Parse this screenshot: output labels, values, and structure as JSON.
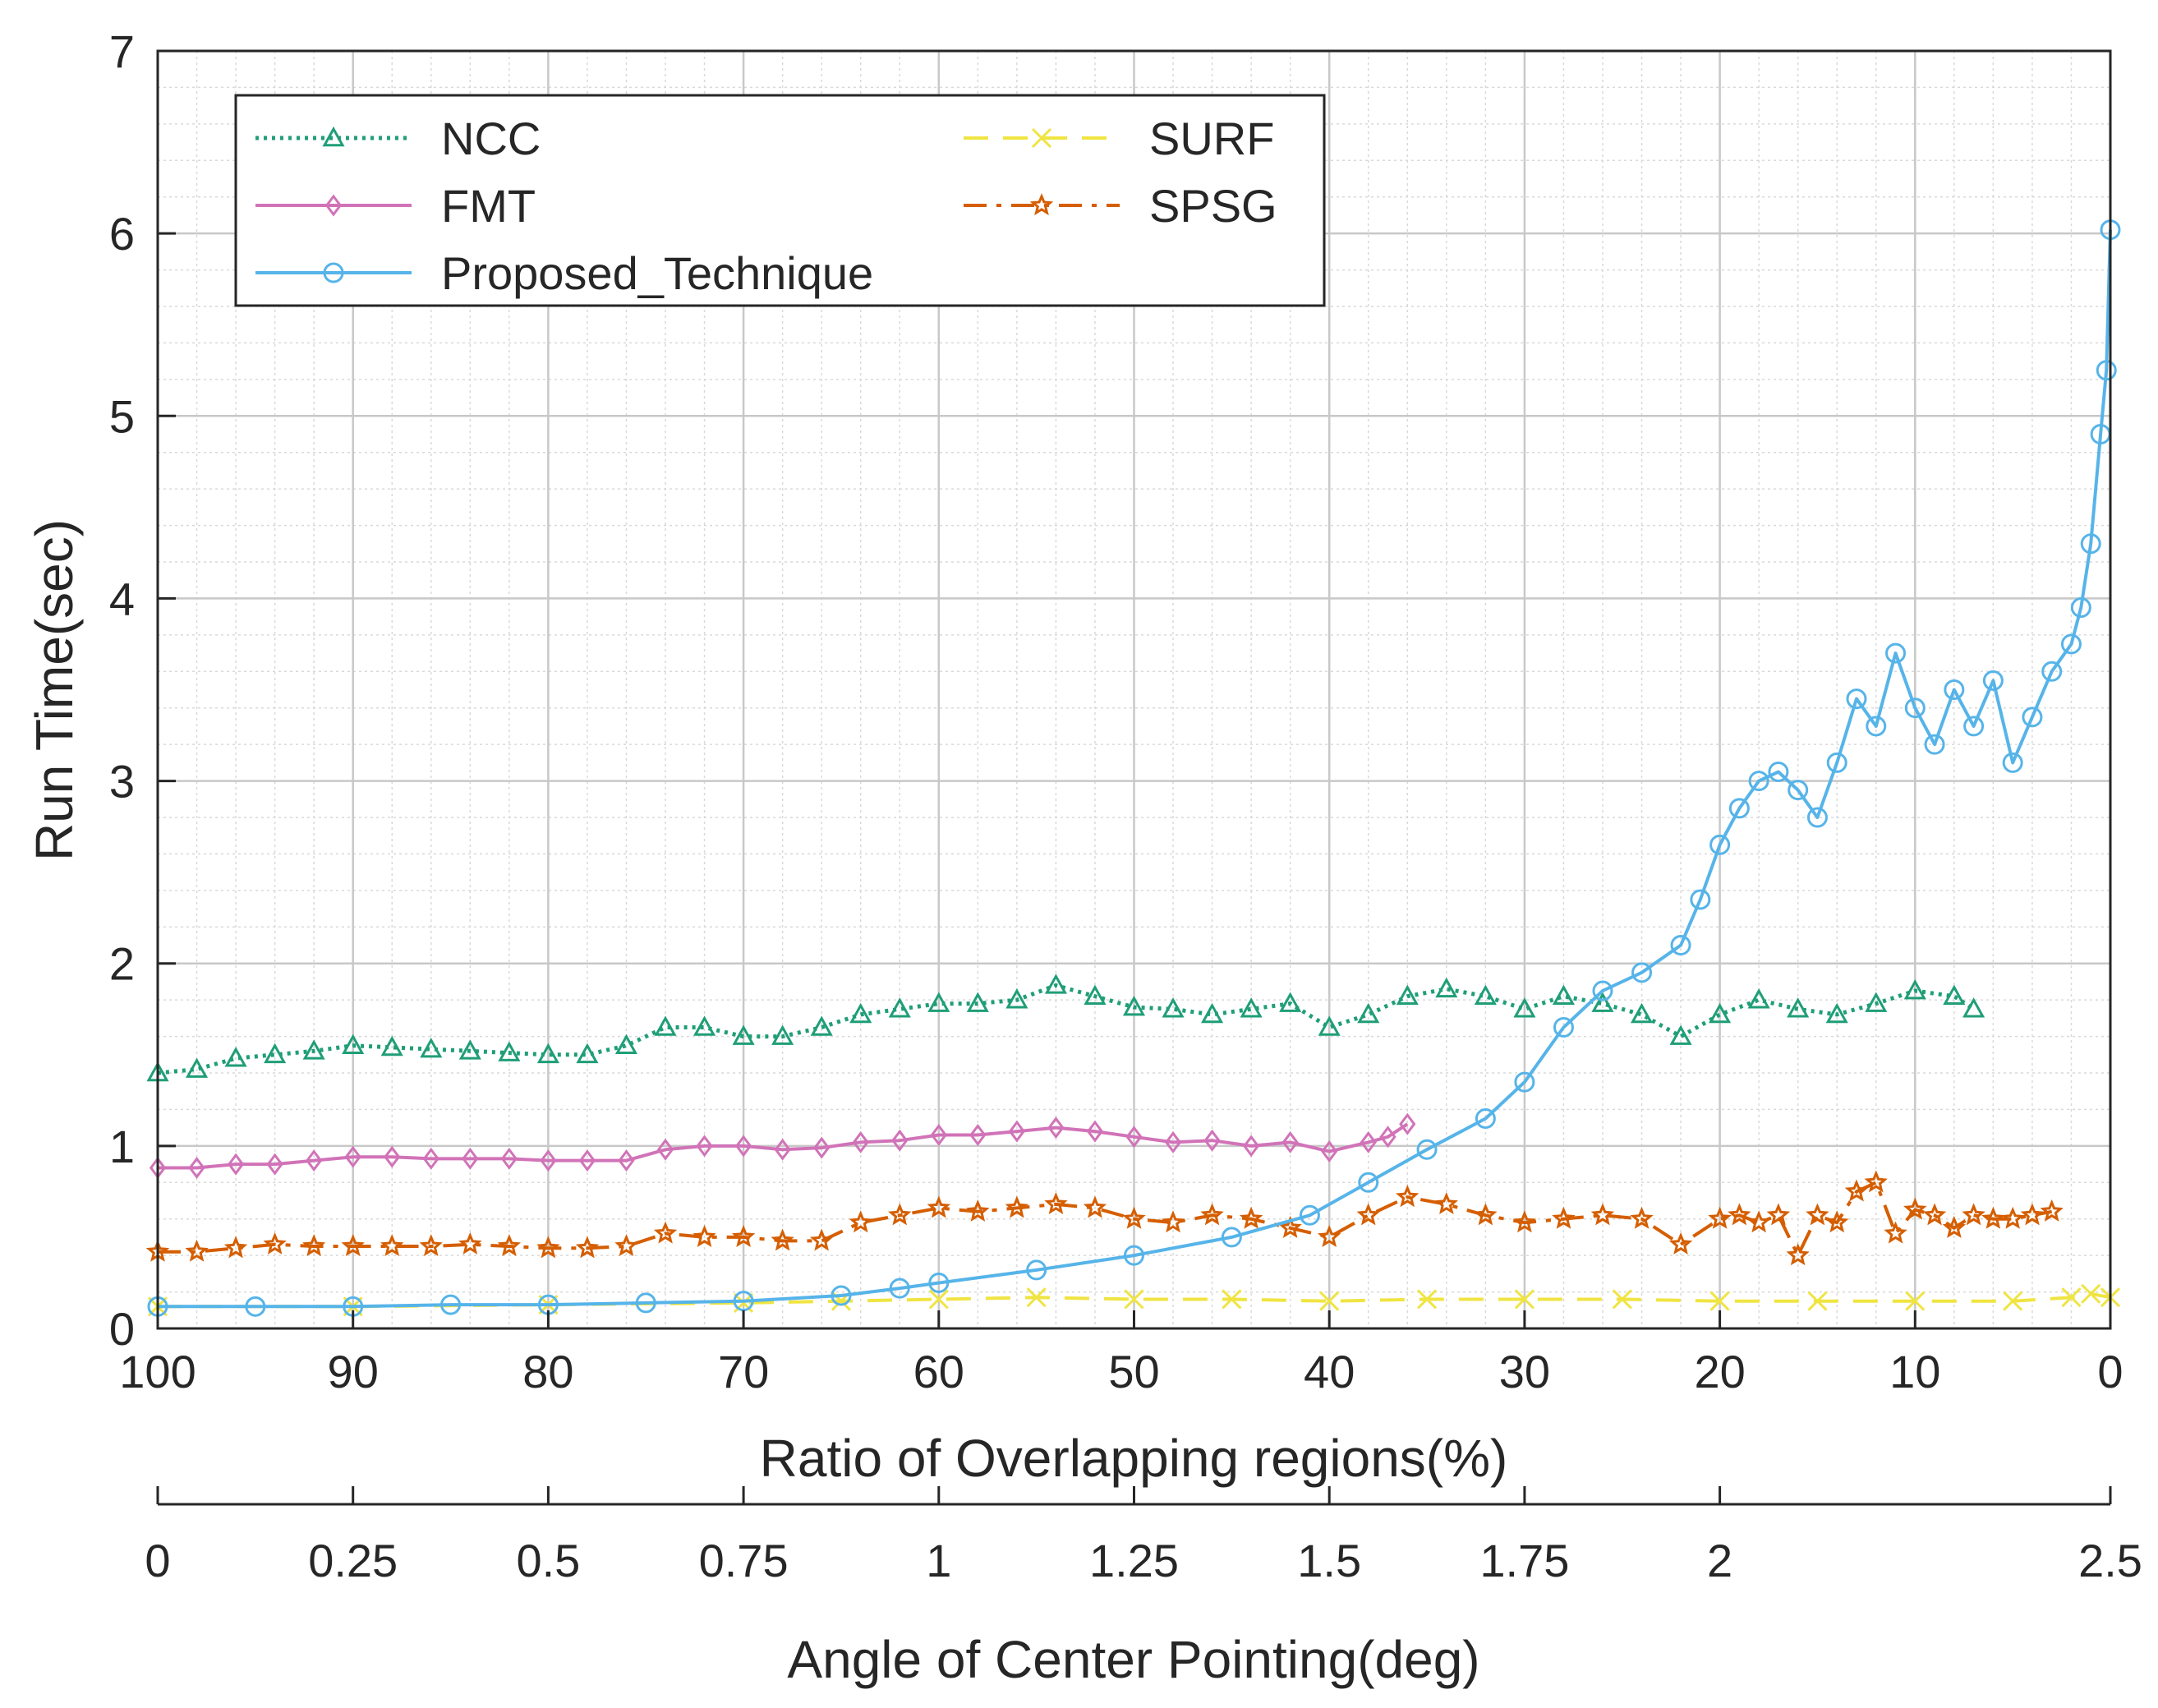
{
  "chart_data": {
    "type": "line",
    "title": "",
    "xlabel": "Ratio of Overlapping regions(%)",
    "ylabel": "Run Time(sec)",
    "x2label": "Angle of Center Pointing(deg)",
    "xlim": [
      100,
      0
    ],
    "ylim": [
      0,
      7
    ],
    "x2lim": [
      0,
      2.5
    ],
    "xticks": [
      "100",
      "90",
      "80",
      "70",
      "60",
      "50",
      "40",
      "30",
      "20",
      "10",
      "0"
    ],
    "yticks": [
      "0",
      "1",
      "2",
      "3",
      "4",
      "5",
      "6",
      "7"
    ],
    "x2ticks": [
      "0",
      "0.25",
      "0.5",
      "0.75",
      "1",
      "1.25",
      "1.5",
      "1.75",
      "2",
      "2.5"
    ],
    "x2tick_values": [
      0,
      0.25,
      0.5,
      0.75,
      1,
      1.25,
      1.5,
      1.75,
      2,
      2.5
    ],
    "grid": true,
    "minor_grid": true,
    "legend_position": "top-left",
    "series": [
      {
        "name": "NCC",
        "color": "#1f9e77",
        "marker": "triangle",
        "line": "dotted",
        "x": [
          100,
          98,
          96,
          94,
          92,
          90,
          88,
          86,
          84,
          82,
          80,
          78,
          76,
          74,
          72,
          70,
          68,
          66,
          64,
          62,
          60,
          58,
          56,
          54,
          52,
          50,
          48,
          46,
          44,
          42,
          40,
          38,
          36,
          34,
          32,
          30,
          28,
          26,
          24,
          22,
          20,
          18,
          16,
          14,
          12,
          10,
          8,
          7
        ],
        "y": [
          1.4,
          1.42,
          1.48,
          1.5,
          1.52,
          1.55,
          1.54,
          1.53,
          1.52,
          1.51,
          1.5,
          1.5,
          1.55,
          1.65,
          1.65,
          1.6,
          1.6,
          1.65,
          1.72,
          1.75,
          1.78,
          1.78,
          1.8,
          1.88,
          1.82,
          1.76,
          1.75,
          1.72,
          1.75,
          1.78,
          1.65,
          1.72,
          1.82,
          1.86,
          1.82,
          1.75,
          1.82,
          1.78,
          1.72,
          1.6,
          1.72,
          1.8,
          1.75,
          1.72,
          1.78,
          1.85,
          1.82,
          1.75
        ]
      },
      {
        "name": "FMT",
        "color": "#d173b8",
        "marker": "diamond",
        "line": "solid",
        "x": [
          100,
          98,
          96,
          94,
          92,
          90,
          88,
          86,
          84,
          82,
          80,
          78,
          76,
          74,
          72,
          70,
          68,
          66,
          64,
          62,
          60,
          58,
          56,
          54,
          52,
          50,
          48,
          46,
          44,
          42,
          40,
          38,
          37,
          36
        ],
        "y": [
          0.88,
          0.88,
          0.9,
          0.9,
          0.92,
          0.94,
          0.94,
          0.93,
          0.93,
          0.93,
          0.92,
          0.92,
          0.92,
          0.98,
          1.0,
          1.0,
          0.98,
          0.99,
          1.02,
          1.03,
          1.06,
          1.06,
          1.08,
          1.1,
          1.08,
          1.05,
          1.02,
          1.03,
          1.0,
          1.02,
          0.97,
          1.02,
          1.05,
          1.12
        ]
      },
      {
        "name": "Proposed_Technique",
        "color": "#56b4e9",
        "marker": "circle",
        "line": "solid",
        "x": [
          100,
          95,
          90,
          85,
          80,
          75,
          70,
          65,
          62,
          60,
          55,
          50,
          45,
          41,
          38,
          35,
          32,
          30,
          28,
          26,
          24,
          22,
          21,
          20,
          19,
          18,
          17,
          16,
          15,
          14,
          13,
          12,
          11,
          10,
          9,
          8,
          7,
          6,
          5,
          4,
          3,
          2,
          1.5,
          1,
          0.5,
          0.2,
          0
        ],
        "y": [
          0.12,
          0.12,
          0.12,
          0.13,
          0.13,
          0.14,
          0.15,
          0.18,
          0.22,
          0.25,
          0.32,
          0.4,
          0.5,
          0.62,
          0.8,
          0.98,
          1.15,
          1.35,
          1.65,
          1.85,
          1.95,
          2.1,
          2.35,
          2.65,
          2.85,
          3.0,
          3.05,
          2.95,
          2.8,
          3.1,
          3.45,
          3.3,
          3.7,
          3.4,
          3.2,
          3.5,
          3.3,
          3.55,
          3.1,
          3.35,
          3.6,
          3.75,
          3.95,
          4.3,
          4.9,
          5.25,
          6.02
        ]
      },
      {
        "name": "SURF",
        "color": "#f0e442",
        "marker": "cross",
        "line": "dashed",
        "x": [
          100,
          90,
          80,
          70,
          65,
          60,
          55,
          50,
          45,
          40,
          35,
          30,
          25,
          20,
          15,
          10,
          5,
          2,
          1,
          0
        ],
        "y": [
          0.12,
          0.12,
          0.13,
          0.14,
          0.15,
          0.16,
          0.17,
          0.16,
          0.16,
          0.15,
          0.16,
          0.16,
          0.16,
          0.15,
          0.15,
          0.15,
          0.15,
          0.17,
          0.19,
          0.17
        ]
      },
      {
        "name": "SPSG",
        "color": "#d55e00",
        "marker": "star",
        "line": "dashdot",
        "x": [
          100,
          98,
          96,
          94,
          92,
          90,
          88,
          86,
          84,
          82,
          80,
          78,
          76,
          74,
          72,
          70,
          68,
          66,
          64,
          62,
          60,
          58,
          56,
          54,
          52,
          50,
          48,
          46,
          44,
          42,
          40,
          38,
          36,
          34,
          32,
          30,
          28,
          26,
          24,
          22,
          20,
          19,
          18,
          17,
          16,
          15,
          14,
          13,
          12,
          11,
          10,
          9,
          8,
          7,
          6,
          5,
          4,
          3
        ],
        "y": [
          0.42,
          0.42,
          0.44,
          0.46,
          0.45,
          0.45,
          0.45,
          0.45,
          0.46,
          0.45,
          0.44,
          0.44,
          0.45,
          0.52,
          0.5,
          0.5,
          0.48,
          0.48,
          0.58,
          0.62,
          0.66,
          0.64,
          0.66,
          0.68,
          0.66,
          0.6,
          0.58,
          0.62,
          0.6,
          0.55,
          0.5,
          0.62,
          0.72,
          0.68,
          0.62,
          0.58,
          0.6,
          0.62,
          0.6,
          0.46,
          0.6,
          0.62,
          0.58,
          0.62,
          0.4,
          0.62,
          0.58,
          0.75,
          0.8,
          0.52,
          0.65,
          0.62,
          0.55,
          0.62,
          0.6,
          0.6,
          0.62,
          0.64
        ]
      }
    ]
  }
}
